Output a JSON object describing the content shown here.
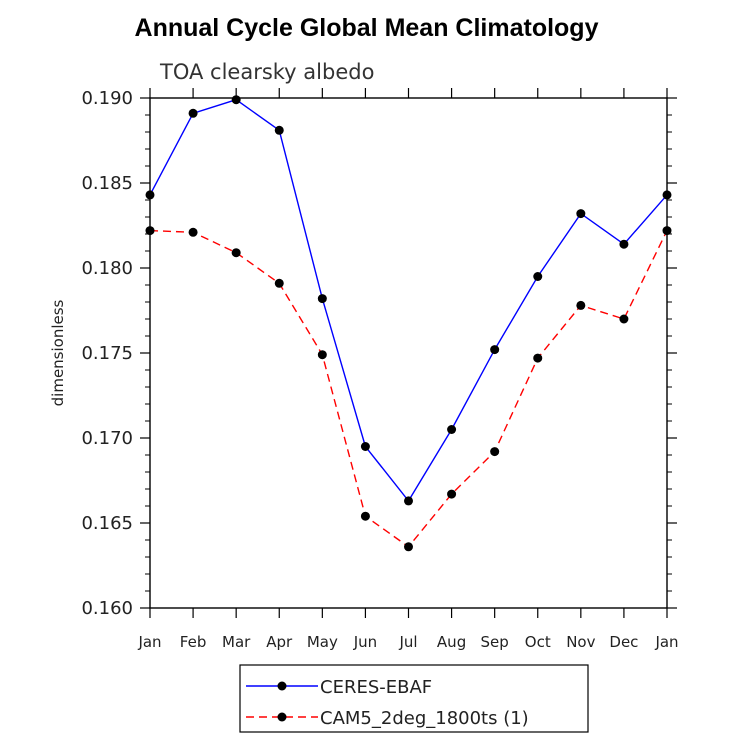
{
  "chart_data": {
    "type": "line",
    "title": "Annual Cycle Global Mean Climatology",
    "subtitle": "TOA clearsky albedo",
    "xlabel": "",
    "ylabel": "dimensionless",
    "categories": [
      "Jan",
      "Feb",
      "Mar",
      "Apr",
      "May",
      "Jun",
      "Jul",
      "Aug",
      "Sep",
      "Oct",
      "Nov",
      "Dec",
      "Jan"
    ],
    "ylim": [
      0.16,
      0.19
    ],
    "yticks": [
      "0.160",
      "0.165",
      "0.170",
      "0.175",
      "0.180",
      "0.185",
      "0.190"
    ],
    "legend_position": "bottom",
    "series": [
      {
        "name": "CERES-EBAF",
        "color": "#0000ff",
        "style": "solid",
        "values": [
          0.1843,
          0.1891,
          0.1899,
          0.1881,
          0.1782,
          0.1695,
          0.1663,
          0.1705,
          0.1752,
          0.1795,
          0.1832,
          0.1814,
          0.1843
        ]
      },
      {
        "name": "CAM5_2deg_1800ts (1)",
        "color": "#ff0000",
        "style": "dashed",
        "values": [
          0.1822,
          0.1821,
          0.1809,
          0.1791,
          0.1749,
          0.1654,
          0.1636,
          0.1667,
          0.1692,
          0.1747,
          0.1778,
          0.177,
          0.1822
        ]
      }
    ]
  }
}
